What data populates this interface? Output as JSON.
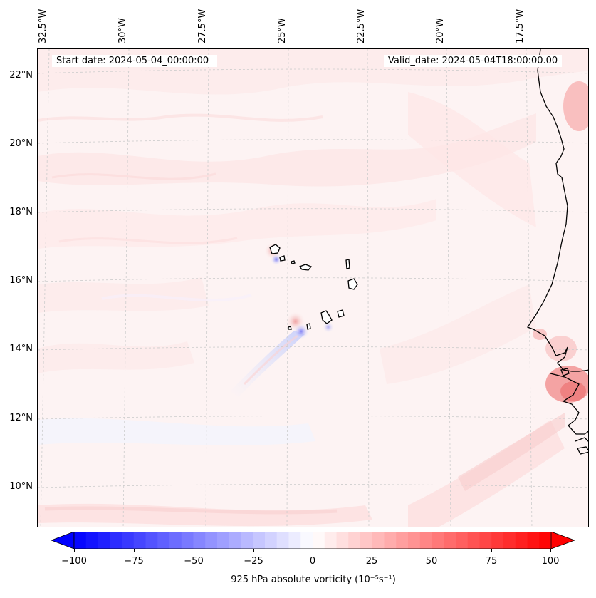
{
  "map": {
    "longitude_labels": [
      "32.5°W",
      "30°W",
      "27.5°W",
      "25°W",
      "22.5°W",
      "20°W",
      "17.5°W"
    ],
    "latitude_labels": [
      "22°N",
      "20°N",
      "18°N",
      "16°N",
      "14°N",
      "12°N",
      "10°N"
    ],
    "start_date_text": "Start date: 2024-05-04_00:00:00",
    "valid_date_text": "Valid_date: 2024-05-04T18:00:00.00"
  },
  "colorbar": {
    "label": "925 hPa absolute vorticity (10⁻⁵s⁻¹)",
    "ticks": [
      "−100",
      "−75",
      "−50",
      "−25",
      "0",
      "25",
      "50",
      "75",
      "100"
    ],
    "min_color": "#0000ff",
    "mid_color": "#ffffff",
    "max_color": "#ff0000"
  },
  "colors": {
    "land_outline": "#000000",
    "gridline": "#cccccc",
    "background_field": "#fdf3f3"
  }
}
